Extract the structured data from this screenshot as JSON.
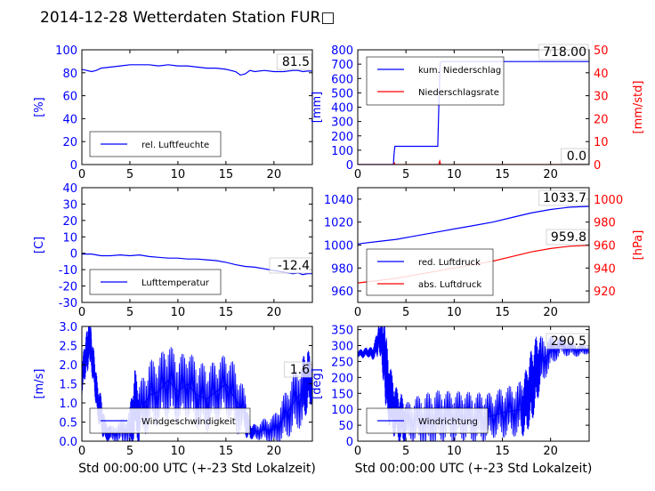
{
  "title": "2014-12-28 Wetterdaten Station FUR□",
  "chart_data": [
    {
      "type": "line",
      "id": "humidity",
      "ylabel": "[%]",
      "xlim": [
        0,
        24
      ],
      "ylim": [
        0,
        100
      ],
      "xticks": [
        0,
        5,
        10,
        15,
        20
      ],
      "yticks": [
        0,
        20,
        40,
        60,
        80,
        100
      ],
      "legend_position": "lower-left",
      "current_value_label": "81.5",
      "series": [
        {
          "name": "rel. Luftfeuchte",
          "color": "#0000ff",
          "x": [
            0,
            0.5,
            1,
            1.5,
            2,
            3,
            4,
            5,
            6,
            7,
            8,
            9,
            10,
            11,
            12,
            13,
            14,
            15,
            16,
            16.5,
            17,
            17.5,
            18,
            19,
            20,
            21,
            22,
            22.5,
            23,
            23.5,
            24
          ],
          "y": [
            83,
            82,
            81,
            82,
            84,
            85,
            86,
            87,
            87,
            87,
            86,
            87,
            86,
            86,
            85,
            84,
            84,
            83,
            81,
            78,
            79,
            82,
            81,
            82,
            81,
            81,
            82,
            82,
            81,
            81.5,
            81.5
          ]
        }
      ]
    },
    {
      "type": "line",
      "id": "precipitation",
      "ylabel": "[mm]",
      "y2label": "[mm/std]",
      "xlim": [
        0,
        24
      ],
      "ylim": [
        0,
        800
      ],
      "y2lim": [
        0,
        50
      ],
      "xticks": [
        0,
        5,
        10,
        15,
        20
      ],
      "yticks": [
        0,
        100,
        200,
        300,
        400,
        500,
        600,
        700,
        800
      ],
      "y2ticks": [
        0,
        10,
        20,
        30,
        40,
        50
      ],
      "legend_position": "top-left",
      "current_value_label": "718.00",
      "current_value2_label": "0.0",
      "series": [
        {
          "name": "kum. Niederschlag",
          "axis": "left",
          "color": "#0000ff",
          "x": [
            0,
            3.7,
            3.75,
            3.85,
            8.3,
            8.45,
            8.55,
            8.7,
            24
          ],
          "y": [
            0,
            0,
            60,
            127,
            127,
            500,
            710,
            718,
            718
          ]
        },
        {
          "name": "Niederschlagsrate",
          "axis": "right",
          "color": "#ff0000",
          "x": [
            0,
            3.75,
            3.8,
            3.85,
            8.4,
            8.5,
            8.6,
            24
          ],
          "y": [
            0,
            0,
            0.6,
            0,
            0,
            1.5,
            0,
            0
          ]
        }
      ]
    },
    {
      "type": "line",
      "id": "temperature",
      "ylabel": "[C]",
      "xlim": [
        0,
        24
      ],
      "ylim": [
        -30,
        40
      ],
      "xticks": [
        0,
        5,
        10,
        15,
        20
      ],
      "yticks": [
        -30,
        -20,
        -10,
        0,
        10,
        20,
        30,
        40
      ],
      "legend_position": "lower-left",
      "current_value_label": "-12.4",
      "series": [
        {
          "name": "Lufttemperatur",
          "color": "#0000ff",
          "x": [
            0,
            1,
            2,
            3,
            4,
            5,
            6,
            7,
            8,
            9,
            10,
            11,
            12,
            13,
            14,
            15,
            16,
            17,
            18,
            19,
            20,
            21,
            22,
            22.5,
            23,
            23.5,
            24
          ],
          "y": [
            -0.5,
            -0.5,
            -1.5,
            -1.5,
            -1.0,
            -1.5,
            -1.0,
            -2.0,
            -2.5,
            -3.0,
            -3.0,
            -3.5,
            -3.5,
            -4.0,
            -4.5,
            -5.5,
            -7.0,
            -8.0,
            -8.5,
            -9.5,
            -10.5,
            -11.5,
            -12.5,
            -12.0,
            -13.0,
            -12.4,
            -12.4
          ]
        }
      ]
    },
    {
      "type": "line",
      "id": "pressure",
      "ylabel": "",
      "y2label": "[hPa]",
      "xlim": [
        0,
        24
      ],
      "ylim": [
        950,
        1050
      ],
      "y2lim": [
        910,
        1010
      ],
      "xticks": [
        0,
        5,
        10,
        15,
        20
      ],
      "yticks": [
        960,
        980,
        1000,
        1020,
        1040
      ],
      "y2ticks": [
        920,
        940,
        960,
        980,
        1000
      ],
      "legend_position": "lower-left",
      "current_value_label": "1033.7",
      "current_value2_label": "959.8",
      "series": [
        {
          "name": "red. Luftdruck",
          "axis": "left",
          "color": "#0000ff",
          "x": [
            0,
            2,
            4,
            6,
            8,
            10,
            12,
            14,
            16,
            18,
            20,
            22,
            24
          ],
          "y": [
            1001,
            1003,
            1005,
            1008,
            1011,
            1014,
            1017,
            1020,
            1024,
            1028,
            1031,
            1033,
            1033.7
          ]
        },
        {
          "name": "abs. Luftdruck",
          "axis": "right",
          "color": "#ff0000",
          "x": [
            0,
            2,
            4,
            6,
            8,
            10,
            12,
            14,
            16,
            18,
            20,
            22,
            24
          ],
          "y": [
            927,
            929,
            931,
            934,
            937,
            940,
            943,
            946,
            950,
            954,
            957,
            959,
            959.8
          ]
        }
      ]
    },
    {
      "type": "line",
      "id": "windspeed",
      "ylabel": "[m/s]",
      "xlabel": "Std 00:00:00 UTC (+-23 Std Lokalzeit)",
      "xlim": [
        0,
        24
      ],
      "ylim": [
        0,
        3.0
      ],
      "xticks": [
        0,
        5,
        10,
        15,
        20
      ],
      "yticks": [
        0.0,
        0.5,
        1.0,
        1.5,
        2.0,
        2.5,
        3.0
      ],
      "legend_position": "lower-left",
      "current_value_label": "1.6",
      "series": [
        {
          "name": "Windgeschwindigkeit",
          "color": "#0000ff",
          "x": [
            0,
            0.3,
            0.6,
            0.8,
            1.0,
            1.3,
            1.6,
            2.0,
            2.4,
            3.0,
            4.0,
            5.0,
            5.5,
            6.0,
            7.0,
            8.0,
            9.0,
            10.0,
            11.0,
            12.0,
            13.0,
            14.0,
            15.0,
            16.0,
            17.0,
            17.5,
            18.0,
            19.0,
            20.0,
            21.0,
            22.0,
            23.0,
            23.5,
            24.0
          ],
          "y": [
            1.6,
            2.1,
            2.4,
            2.75,
            2.3,
            1.8,
            1.1,
            0.7,
            0.3,
            0.2,
            0.25,
            0.3,
            1.0,
            0.7,
            1.2,
            1.3,
            1.6,
            1.3,
            1.5,
            1.2,
            1.1,
            1.3,
            1.5,
            1.1,
            0.7,
            0.25,
            0.25,
            0.3,
            0.3,
            0.6,
            1.0,
            1.3,
            1.6,
            1.6
          ],
          "spread_y": [
            0.4,
            0.5,
            0.6,
            0.6,
            0.5,
            0.5,
            0.5,
            0.5,
            0.3,
            0.2,
            0.3,
            0.6,
            0.9,
            0.8,
            0.9,
            0.9,
            1.0,
            0.9,
            0.9,
            0.9,
            0.9,
            0.8,
            0.8,
            0.9,
            0.6,
            0.2,
            0.2,
            0.3,
            0.4,
            0.6,
            0.8,
            0.9,
            0.8,
            0.6
          ]
        }
      ]
    },
    {
      "type": "line",
      "id": "winddirection",
      "ylabel": "[deg]",
      "xlabel": "Std 00:00:00 UTC (+-23 Std Lokalzeit)",
      "xlim": [
        0,
        24
      ],
      "ylim": [
        0,
        360
      ],
      "xticks": [
        0,
        5,
        10,
        15,
        20
      ],
      "yticks": [
        0,
        50,
        100,
        150,
        200,
        250,
        300,
        350
      ],
      "legend_position": "lower-left",
      "current_value_label": "290.5",
      "series": [
        {
          "name": "Windrichtung",
          "color": "#0000ff",
          "x": [
            0,
            0.5,
            1.0,
            1.5,
            2.0,
            2.2,
            2.5,
            2.8,
            3.0,
            3.5,
            4.0,
            4.5,
            5.0,
            6.0,
            7.0,
            8.0,
            9.0,
            10.0,
            11.0,
            12.0,
            13.0,
            14.0,
            15.0,
            16.0,
            17.0,
            17.5,
            18.0,
            18.5,
            19.0,
            20.0,
            21.0,
            22.0,
            23.0,
            24.0
          ],
          "y": [
            275,
            275,
            280,
            275,
            300,
            330,
            310,
            260,
            200,
            120,
            90,
            70,
            60,
            70,
            60,
            70,
            80,
            75,
            80,
            70,
            75,
            80,
            90,
            95,
            100,
            130,
            170,
            220,
            250,
            280,
            300,
            290,
            285,
            290
          ],
          "spread_y": [
            10,
            15,
            15,
            20,
            40,
            40,
            80,
            120,
            120,
            100,
            80,
            80,
            60,
            70,
            90,
            90,
            80,
            80,
            80,
            80,
            80,
            70,
            80,
            80,
            90,
            100,
            120,
            110,
            80,
            50,
            30,
            25,
            20,
            15
          ]
        }
      ]
    }
  ]
}
